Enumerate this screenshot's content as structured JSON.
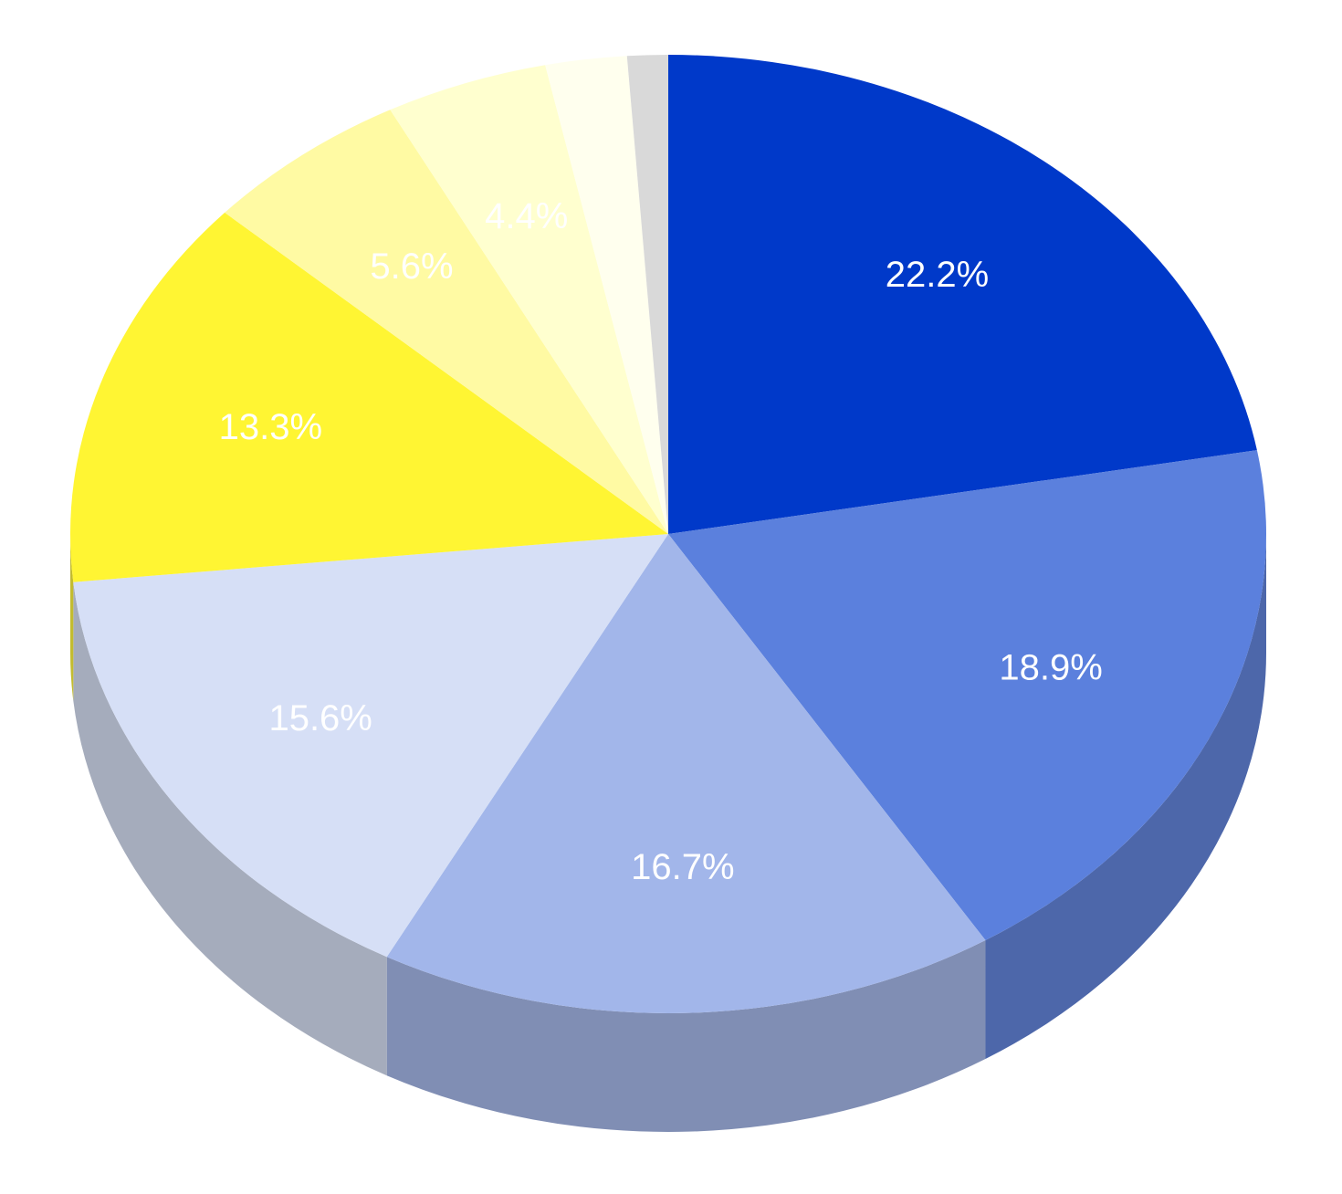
{
  "chart_data": {
    "type": "pie",
    "values": [
      22.2,
      18.9,
      16.7,
      15.6,
      13.3,
      5.6,
      4.4,
      2.2,
      1.1
    ],
    "value_labels": [
      "22.2%",
      "18.9%",
      "16.7%",
      "15.6%",
      "13.3%",
      "5.6%",
      "4.4%",
      null,
      null
    ],
    "colors": [
      "#0039c9",
      "#5b80dd",
      "#a2b6ea",
      "#d6dff6",
      "#fff533",
      "#fffaa3",
      "#ffffcf",
      "#ffffee",
      "#d9d9d9"
    ]
  }
}
